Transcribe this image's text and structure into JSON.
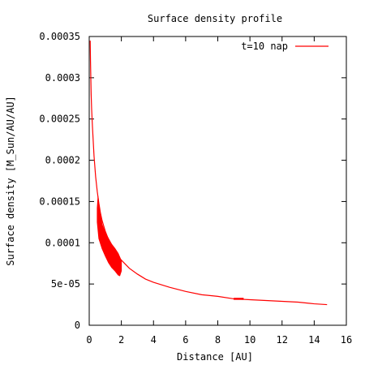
{
  "colors": {
    "series": "#ff0000",
    "axes": "#000000",
    "background": "#ffffff"
  },
  "chart_data": {
    "type": "line",
    "title": "Surface density profile",
    "xlabel": "Distance [AU]",
    "ylabel": "Surface density [M_Sun/AU/AU]",
    "xlim": [
      0,
      16
    ],
    "ylim": [
      0,
      0.00035
    ],
    "grid": false,
    "legend_placement": "top-right",
    "xticks": [
      0,
      2,
      4,
      6,
      8,
      10,
      12,
      14,
      16
    ],
    "xtick_labels": [
      "0",
      "2",
      "4",
      "6",
      "8",
      "10",
      "12",
      "14",
      "16"
    ],
    "yticks": [
      0,
      5e-05,
      0.0001,
      0.00015,
      0.0002,
      0.00025,
      0.0003,
      0.00035
    ],
    "ytick_labels": [
      "0",
      "5e-05",
      "0.0001",
      "0.00015",
      "0.0002",
      "0.00025",
      "0.0003",
      "0.00035"
    ],
    "series": [
      {
        "name": "t=10 nap",
        "color": "#ff0000",
        "x": [
          0.06,
          0.08,
          0.1,
          0.12,
          0.15,
          0.2,
          0.3,
          0.4,
          0.5,
          0.6,
          0.7,
          0.8,
          1.0,
          1.2,
          1.4,
          1.6,
          1.8,
          2.0,
          2.5,
          3.0,
          3.5,
          4.0,
          5.0,
          6.0,
          7.0,
          8.0,
          9.0,
          10.0,
          11.0,
          12.0,
          13.0,
          14.0,
          14.8
        ],
        "y": [
          0.000345,
          0.00032,
          0.0003,
          0.00028,
          0.000262,
          0.000241,
          0.000205,
          0.00018,
          0.000162,
          0.000148,
          0.000136,
          0.000127,
          0.000114,
          0.000104,
          9.6e-05,
          8.9e-05,
          8.3e-05,
          7.9e-05,
          6.9e-05,
          6.2e-05,
          5.6e-05,
          5.2e-05,
          4.6e-05,
          4.1e-05,
          3.7e-05,
          3.5e-05,
          3.2e-05,
          3.1e-05,
          3e-05,
          2.9e-05,
          2.8e-05,
          2.6e-05,
          2.5e-05
        ]
      }
    ],
    "noisy_band": {
      "series": "t=10 nap",
      "x_range": [
        0.5,
        2.0
      ],
      "upper": {
        "x": [
          0.5,
          0.55,
          0.6,
          0.8,
          1.0,
          1.2,
          1.4,
          1.6,
          1.8,
          2.0
        ],
        "y": [
          0.000142,
          0.000156,
          0.000145,
          0.000122,
          0.000112,
          0.000105,
          9.8e-05,
          9.3e-05,
          8.7e-05,
          7.8e-05
        ]
      },
      "lower": {
        "x": [
          0.5,
          0.6,
          0.8,
          1.0,
          1.2,
          1.4,
          1.6,
          1.8,
          1.9,
          2.0
        ],
        "y": [
          0.000125,
          0.000105,
          9.3e-05,
          8.4e-05,
          7.6e-05,
          7e-05,
          6.6e-05,
          6.1e-05,
          6e-05,
          6.6e-05
        ]
      }
    },
    "noisy_blip": {
      "series": "t=10 nap",
      "x_range": [
        9.0,
        9.6
      ],
      "y_center": 3.2e-05
    }
  }
}
